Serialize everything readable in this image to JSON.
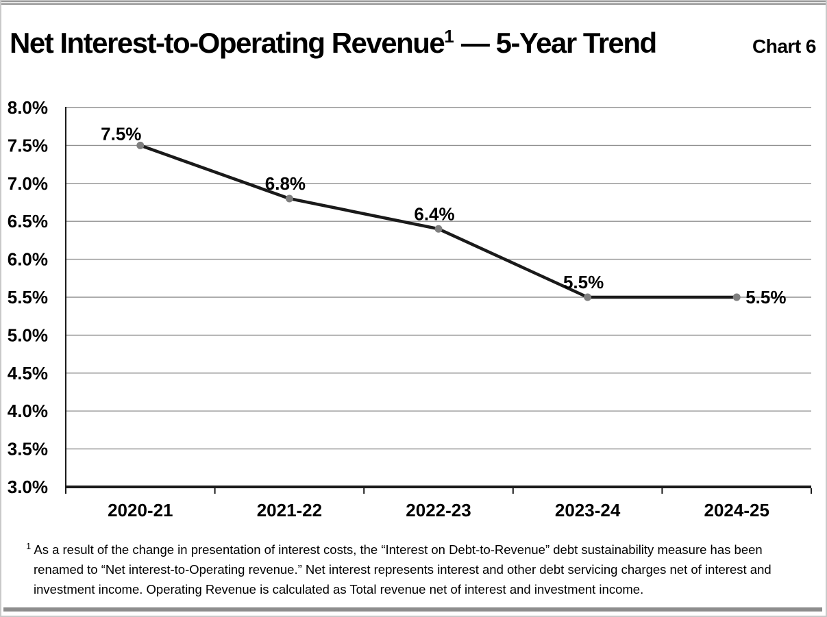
{
  "header": {
    "title_main": "Net Interest-to-Operating Revenue",
    "title_superscript": "1",
    "title_suffix": " — 5-Year Trend",
    "chart_number": "Chart 6"
  },
  "chart_data": {
    "type": "line",
    "title": "Net Interest-to-Operating Revenue — 5-Year Trend",
    "categories": [
      "2020-21",
      "2021-22",
      "2022-23",
      "2023-24",
      "2024-25"
    ],
    "series": [
      {
        "name": "Net Interest-to-Operating Revenue",
        "values": [
          7.5,
          6.8,
          6.4,
          5.5,
          5.5
        ]
      }
    ],
    "point_labels": [
      "7.5%",
      "6.8%",
      "6.4%",
      "5.5%",
      "5.5%"
    ],
    "label_positions": [
      "above-left",
      "above",
      "above",
      "above",
      "right"
    ],
    "xlabel": "",
    "ylabel": "",
    "ylim": [
      3.0,
      8.0
    ],
    "ytick_step": 0.5,
    "ytick_suffix": "%",
    "grid": "horizontal",
    "legend": "none",
    "line_color": "#1a1a1a",
    "marker_color": "#7f7f7f",
    "gridline_color": "#919191",
    "axis_color": "#1a1a1a"
  },
  "footnote": {
    "superscript": "1",
    "text": "As a result of the change in presentation of interest costs, the “Interest on Debt-to-Revenue” debt sustainability measure has been renamed to “Net interest-to-Operating revenue.” Net interest represents interest and other debt servicing charges net of interest and investment income. Operating Revenue is calculated as Total revenue net of interest and investment income."
  }
}
